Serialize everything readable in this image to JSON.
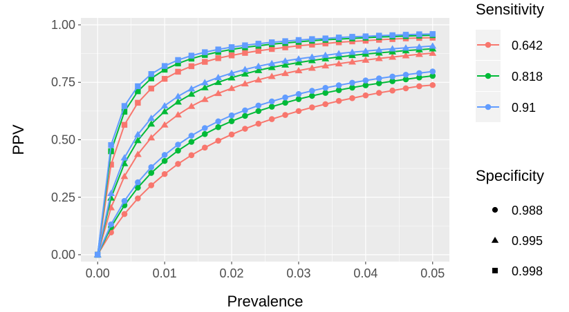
{
  "colors": {
    "panel_bg": "#ebebeb",
    "grid_major": "#ffffff",
    "axis_text": "#4d4d4d",
    "title_text": "#000000",
    "legend_key_bg": "#f2f2f2"
  },
  "chart_data": {
    "type": "line",
    "xlabel": "Prevalence",
    "ylabel": "PPV",
    "xlim": [
      -0.0025,
      0.0525
    ],
    "ylim": [
      -0.03,
      1.03
    ],
    "x_ticks": [
      0,
      0.01,
      0.02,
      0.03,
      0.04,
      0.05
    ],
    "x_tick_labels": [
      "0.00",
      "0.01",
      "0.02",
      "0.03",
      "0.04",
      "0.05"
    ],
    "y_ticks": [
      0,
      0.25,
      0.5,
      0.75,
      1.0
    ],
    "y_tick_labels": [
      "0.00",
      "0.25",
      "0.50",
      "0.75",
      "1.00"
    ],
    "x": [
      0,
      0.002,
      0.004,
      0.006,
      0.008,
      0.01,
      0.012,
      0.014,
      0.016,
      0.018,
      0.02,
      0.022,
      0.024,
      0.026,
      0.028,
      0.03,
      0.032,
      0.034,
      0.036,
      0.038,
      0.04,
      0.042,
      0.044,
      0.046,
      0.048,
      0.05
    ],
    "grid": true,
    "legend_position": "right",
    "legends": [
      {
        "title": "Sensitivity",
        "kind": "color",
        "entries": [
          {
            "label": "0.642",
            "color": "#F8766D"
          },
          {
            "label": "0.818",
            "color": "#00BA38"
          },
          {
            "label": "0.91",
            "color": "#619CFF"
          }
        ]
      },
      {
        "title": "Specificity",
        "kind": "shape",
        "entries": [
          {
            "label": "0.988",
            "shape": "circle"
          },
          {
            "label": "0.995",
            "shape": "triangle"
          },
          {
            "label": "0.998",
            "shape": "square"
          }
        ]
      }
    ],
    "series": [
      {
        "sensitivity": "0.642",
        "specificity": "0.988",
        "color": "#F8766D",
        "shape": "circle",
        "values": [
          0,
          0.097,
          0.177,
          0.245,
          0.302,
          0.351,
          0.395,
          0.433,
          0.466,
          0.496,
          0.523,
          0.548,
          0.57,
          0.59,
          0.608,
          0.625,
          0.641,
          0.655,
          0.669,
          0.681,
          0.693,
          0.704,
          0.714,
          0.724,
          0.733,
          0.738
        ]
      },
      {
        "sensitivity": "0.642",
        "specificity": "0.995",
        "color": "#F8766D",
        "shape": "triangle",
        "values": [
          0,
          0.205,
          0.341,
          0.437,
          0.509,
          0.565,
          0.609,
          0.646,
          0.676,
          0.702,
          0.724,
          0.744,
          0.761,
          0.776,
          0.789,
          0.801,
          0.812,
          0.822,
          0.831,
          0.839,
          0.847,
          0.854,
          0.86,
          0.866,
          0.872,
          0.877
        ]
      },
      {
        "sensitivity": "0.642",
        "specificity": "0.998",
        "color": "#F8766D",
        "shape": "square",
        "values": [
          0,
          0.392,
          0.565,
          0.661,
          0.723,
          0.765,
          0.796,
          0.82,
          0.839,
          0.855,
          0.867,
          0.878,
          0.887,
          0.895,
          0.902,
          0.909,
          0.914,
          0.919,
          0.924,
          0.928,
          0.931,
          0.935,
          0.938,
          0.941,
          0.943,
          0.944
        ]
      },
      {
        "sensitivity": "0.818",
        "specificity": "0.988",
        "color": "#00BA38",
        "shape": "circle",
        "values": [
          0,
          0.12,
          0.215,
          0.292,
          0.356,
          0.408,
          0.453,
          0.491,
          0.525,
          0.555,
          0.581,
          0.604,
          0.625,
          0.644,
          0.661,
          0.677,
          0.691,
          0.704,
          0.716,
          0.727,
          0.737,
          0.746,
          0.755,
          0.763,
          0.771,
          0.778
        ]
      },
      {
        "sensitivity": "0.818",
        "specificity": "0.995",
        "color": "#00BA38",
        "shape": "triangle",
        "values": [
          0,
          0.247,
          0.397,
          0.497,
          0.569,
          0.623,
          0.665,
          0.699,
          0.727,
          0.75,
          0.77,
          0.787,
          0.802,
          0.815,
          0.826,
          0.836,
          0.845,
          0.853,
          0.86,
          0.867,
          0.873,
          0.878,
          0.883,
          0.888,
          0.892,
          0.896
        ]
      },
      {
        "sensitivity": "0.818",
        "specificity": "0.998",
        "color": "#00BA38",
        "shape": "square",
        "values": [
          0,
          0.45,
          0.622,
          0.711,
          0.767,
          0.805,
          0.832,
          0.853,
          0.869,
          0.882,
          0.893,
          0.902,
          0.909,
          0.916,
          0.921,
          0.926,
          0.931,
          0.935,
          0.938,
          0.941,
          0.944,
          0.947,
          0.949,
          0.951,
          0.953,
          0.955
        ]
      },
      {
        "sensitivity": "0.91",
        "specificity": "0.988",
        "color": "#619CFF",
        "shape": "circle",
        "values": [
          0,
          0.132,
          0.234,
          0.315,
          0.381,
          0.434,
          0.479,
          0.518,
          0.551,
          0.58,
          0.606,
          0.628,
          0.649,
          0.667,
          0.684,
          0.699,
          0.713,
          0.726,
          0.737,
          0.748,
          0.758,
          0.767,
          0.775,
          0.783,
          0.79,
          0.797
        ]
      },
      {
        "sensitivity": "0.91",
        "specificity": "0.995",
        "color": "#619CFF",
        "shape": "triangle",
        "values": [
          0,
          0.267,
          0.422,
          0.523,
          0.594,
          0.648,
          0.689,
          0.722,
          0.749,
          0.771,
          0.79,
          0.806,
          0.82,
          0.832,
          0.843,
          0.852,
          0.86,
          0.868,
          0.875,
          0.881,
          0.886,
          0.891,
          0.896,
          0.9,
          0.904,
          0.908
        ]
      },
      {
        "sensitivity": "0.91",
        "specificity": "0.998",
        "color": "#619CFF",
        "shape": "square",
        "values": [
          0,
          0.477,
          0.647,
          0.733,
          0.786,
          0.821,
          0.847,
          0.866,
          0.881,
          0.893,
          0.903,
          0.911,
          0.918,
          0.924,
          0.929,
          0.934,
          0.938,
          0.941,
          0.945,
          0.948,
          0.95,
          0.953,
          0.955,
          0.957,
          0.959,
          0.96
        ]
      }
    ]
  }
}
